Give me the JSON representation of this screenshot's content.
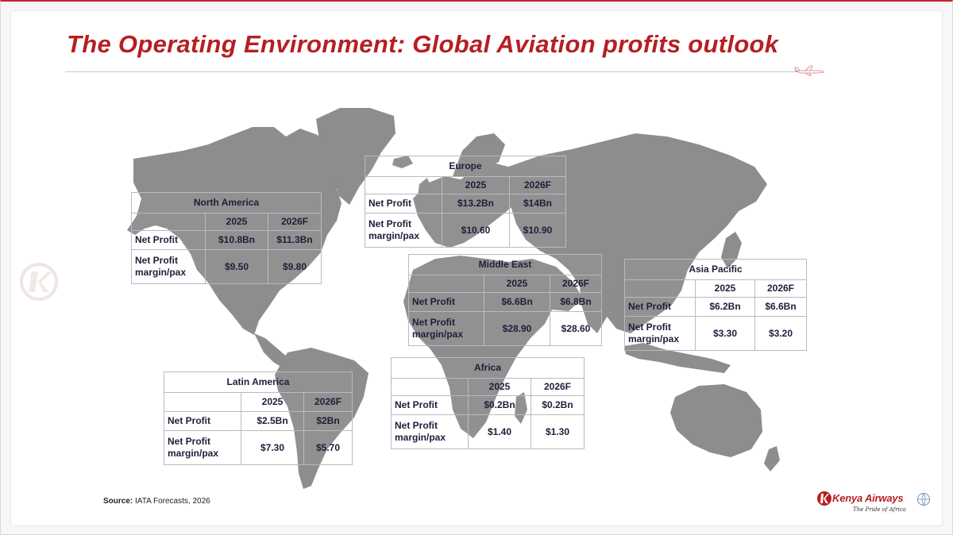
{
  "title": "The Operating Environment: Global Aviation profits outlook",
  "colors": {
    "title": "#b51f24",
    "map_land": "#8d8d8d",
    "table_text": "#1c1f3a",
    "table_border": "#b9b9c4"
  },
  "source": {
    "label": "Source:",
    "text": " IATA Forecasts, 2026"
  },
  "logo": {
    "name": "Kenya Airways",
    "tagline": "The Pride of Africa"
  },
  "regions": {
    "north_america": {
      "name": "North America",
      "year1": "2025",
      "year2": "2026F",
      "row1_label": "Net Profit",
      "row1_v1": "$10.8Bn",
      "row1_v2": "$11.3Bn",
      "row2_label_a": "Net Profit",
      "row2_label_b": "margin/pax",
      "row2_v1": "$9.50",
      "row2_v2": "$9.80"
    },
    "europe": {
      "name": "Europe",
      "year1": "2025",
      "year2": "2026F",
      "row1_label": "Net Profit",
      "row1_v1": "$13.2Bn",
      "row1_v2": "$14Bn",
      "row2_label_a": "Net Profit",
      "row2_label_b": "margin/pax",
      "row2_v1": "$10.60",
      "row2_v2": "$10.90"
    },
    "middle_east": {
      "name": "Middle East",
      "year1": "2025",
      "year2": "2026F",
      "row1_label": "Net Profit",
      "row1_v1": "$6.6Bn",
      "row1_v2": "$6.8Bn",
      "row2_label_a": "Net Profit",
      "row2_label_b": "margin/pax",
      "row2_v1": "$28.90",
      "row2_v2": "$28.60"
    },
    "asia_pacific": {
      "name": "Asia Pacific",
      "year1": "2025",
      "year2": "2026F",
      "row1_label": "Net Profit",
      "row1_v1": "$6.2Bn",
      "row1_v2": "$6.6Bn",
      "row2_label_a": "Net Profit",
      "row2_label_b": "margin/pax",
      "row2_v1": "$3.30",
      "row2_v2": "$3.20"
    },
    "latin_america": {
      "name": "Latin America",
      "year1": "2025",
      "year2": "2026F",
      "row1_label": "Net Profit",
      "row1_v1": "$2.5Bn",
      "row1_v2": "$2Bn",
      "row2_label_a": "Net Profit",
      "row2_label_b": "margin/pax",
      "row2_v1": "$7.30",
      "row2_v2": "$5.70"
    },
    "africa": {
      "name": "Africa",
      "year1": "2025",
      "year2": "2026F",
      "row1_label": "Net Profit",
      "row1_v1": "$0.2Bn",
      "row1_v2": "$0.2Bn",
      "row2_label_a": "Net Profit",
      "row2_label_b": "margin/pax",
      "row2_v1": "$1.40",
      "row2_v2": "$1.30"
    }
  }
}
